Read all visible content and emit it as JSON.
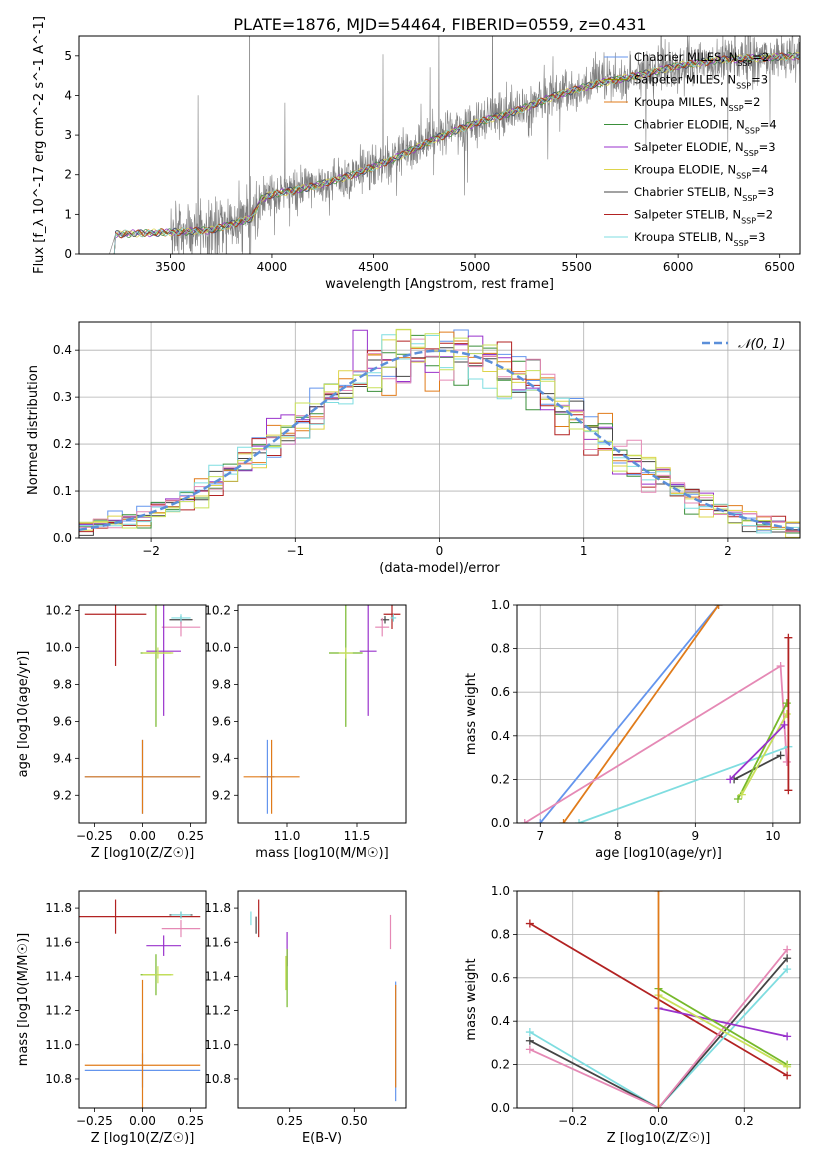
{
  "page_title": "PLATE=1876, MJD=54464, FIBERID=0559, z=0.431",
  "colors": {
    "Chabrier MILES": "#6495ed",
    "Salpeter MILES": "#8b8b00",
    "Kroupa MILES": "#e07b1a",
    "Chabrier ELODIE": "#3a8f3a",
    "Salpeter ELODIE": "#9932cc",
    "Kroupa ELODIE": "#ddd44a",
    "Chabrier STELIB": "#444444",
    "Salpeter STELIB": "#b22222",
    "Kroupa STELIB": "#7fdde0",
    "green2": "#76b82a",
    "pink": "#e589b5",
    "lime": "#c8e05a",
    "normal": "#5b8fd9"
  },
  "chart_data": [
    {
      "id": "spectrum",
      "type": "line",
      "title": "PLATE=1876, MJD=54464, FIBERID=0559, z=0.431",
      "xlabel": "wavelength [Angstrom, rest frame]",
      "ylabel": "Flux [f_λ 10^-17 erg cm^-2 s^-1 A^-1]",
      "xlim": [
        3050,
        6600
      ],
      "ylim": [
        0,
        5.5
      ],
      "xticks": [
        3500,
        4000,
        4500,
        5000,
        5500,
        6000,
        6500
      ],
      "yticks": [
        0,
        1,
        2,
        3,
        4,
        5
      ],
      "continuum_points": [
        [
          3200,
          0.0
        ],
        [
          3230,
          0.5
        ],
        [
          3500,
          0.55
        ],
        [
          3700,
          0.6
        ],
        [
          3900,
          0.9
        ],
        [
          3950,
          1.4
        ],
        [
          4000,
          1.5
        ],
        [
          4200,
          1.7
        ],
        [
          4400,
          2.0
        ],
        [
          4600,
          2.4
        ],
        [
          4800,
          2.9
        ],
        [
          5000,
          3.3
        ],
        [
          5200,
          3.6
        ],
        [
          5400,
          4.0
        ],
        [
          5600,
          4.3
        ],
        [
          5800,
          4.5
        ],
        [
          6000,
          4.75
        ],
        [
          6200,
          4.9
        ],
        [
          6400,
          4.95
        ],
        [
          6600,
          5.0
        ]
      ],
      "legend": [
        {
          "name": "Chabrier MILES",
          "nssp": "2"
        },
        {
          "name": "Salpeter MILES",
          "nssp": "3"
        },
        {
          "name": "Kroupa MILES",
          "nssp": "2"
        },
        {
          "name": "Chabrier ELODIE",
          "nssp": "4"
        },
        {
          "name": "Salpeter ELODIE",
          "nssp": "3"
        },
        {
          "name": "Kroupa ELODIE",
          "nssp": "4"
        },
        {
          "name": "Chabrier STELIB",
          "nssp": "3"
        },
        {
          "name": "Salpeter STELIB",
          "nssp": "2"
        },
        {
          "name": "Kroupa STELIB",
          "nssp": "3"
        }
      ],
      "legend_placement": "upper-right"
    },
    {
      "id": "residuals",
      "type": "line",
      "xlabel": "(data-model)/error",
      "ylabel": "Normed distribution",
      "xlim": [
        -2.5,
        2.5
      ],
      "ylim": [
        0,
        0.46
      ],
      "xticks": [
        -2,
        -1,
        0,
        1,
        2
      ],
      "yticks": [
        0.0,
        0.1,
        0.2,
        0.3,
        0.4
      ],
      "grid": true,
      "normal_label": "𝒩(0, 1)",
      "legend_placement": "upper-right"
    },
    {
      "id": "age_vs_Z",
      "type": "scatter",
      "xlabel": "Z [log10(Z/Z☉)]",
      "ylabel": "age  [log10(age/yr)]",
      "xlim": [
        -0.33,
        0.33
      ],
      "ylim": [
        9.05,
        10.23
      ],
      "xticks": [
        -0.25,
        0.0,
        0.25
      ],
      "yticks": [
        9.2,
        9.4,
        9.6,
        9.8,
        10.0,
        10.2
      ],
      "points": [
        {
          "c": "#6495ed",
          "x": 0.0,
          "y": 9.3,
          "xerr": 0.3,
          "yerr": 0.2
        },
        {
          "c": "#e07b1a",
          "x": 0.0,
          "y": 9.3,
          "xerr": 0.3,
          "yerr": 0.2
        },
        {
          "c": "#b22222",
          "x": -0.14,
          "y": 10.18,
          "xerr": 0.16,
          "yerr": 0.28
        },
        {
          "c": "#444444",
          "x": 0.2,
          "y": 10.15,
          "xerr": 0.06,
          "yerr": 0.02
        },
        {
          "c": "#e589b5",
          "x": 0.2,
          "y": 10.11,
          "xerr": 0.1,
          "yerr": 0.05
        },
        {
          "c": "#9932cc",
          "x": 0.11,
          "y": 9.98,
          "xerr": 0.09,
          "yerr": 0.35
        },
        {
          "c": "#76b82a",
          "x": 0.07,
          "y": 9.97,
          "xerr": 0.08,
          "yerr": 0.4
        },
        {
          "c": "#c8e05a",
          "x": 0.08,
          "y": 9.97,
          "xerr": 0.08,
          "yerr": 0.03
        },
        {
          "c": "#7fdde0",
          "x": 0.2,
          "y": 10.16,
          "xerr": 0.05,
          "yerr": 0.02
        }
      ]
    },
    {
      "id": "age_vs_mass",
      "type": "scatter",
      "xlabel": "mass [log10(M/M☉)]",
      "ylabel": "",
      "xlim": [
        10.65,
        11.85
      ],
      "ylim": [
        9.05,
        10.23
      ],
      "xticks": [
        11.0,
        11.5
      ],
      "yticks": [
        9.2,
        9.4,
        9.6,
        9.8,
        10.0,
        10.2
      ],
      "points": [
        {
          "c": "#6495ed",
          "x": 10.86,
          "y": 9.3,
          "xerr": 0.05,
          "yerr": 0.2
        },
        {
          "c": "#e07b1a",
          "x": 10.89,
          "y": 9.3,
          "xerr": 0.2,
          "yerr": 0.2
        },
        {
          "c": "#b22222",
          "x": 11.75,
          "y": 10.18,
          "xerr": 0.06,
          "yerr": 0.08
        },
        {
          "c": "#444444",
          "x": 11.7,
          "y": 10.15,
          "xerr": 0.03,
          "yerr": 0.02
        },
        {
          "c": "#e589b5",
          "x": 11.68,
          "y": 10.11,
          "xerr": 0.05,
          "yerr": 0.05
        },
        {
          "c": "#9932cc",
          "x": 11.58,
          "y": 9.98,
          "xerr": 0.06,
          "yerr": 0.35
        },
        {
          "c": "#76b82a",
          "x": 11.42,
          "y": 9.97,
          "xerr": 0.12,
          "yerr": 0.4
        },
        {
          "c": "#c8e05a",
          "x": 11.42,
          "y": 9.97,
          "xerr": 0.05,
          "yerr": 0.03
        },
        {
          "c": "#7fdde0",
          "x": 11.76,
          "y": 10.16,
          "xerr": 0.02,
          "yerr": 0.02
        }
      ]
    },
    {
      "id": "weight_vs_age",
      "type": "line",
      "xlabel": "age  [log10(age/yr)]",
      "ylabel": "mass weight",
      "xlim": [
        6.7,
        10.35
      ],
      "ylim": [
        0,
        1.0
      ],
      "xticks": [
        7,
        8,
        9,
        10
      ],
      "yticks": [
        0.0,
        0.2,
        0.4,
        0.6,
        0.8,
        1.0
      ],
      "grid": true,
      "series": [
        {
          "c": "#6495ed",
          "x": [
            7.0,
            9.3
          ],
          "y": [
            0.0,
            1.0
          ]
        },
        {
          "c": "#e07b1a",
          "x": [
            7.3,
            9.3
          ],
          "y": [
            0.0,
            1.0
          ]
        },
        {
          "c": "#e589b5",
          "x": [
            6.8,
            10.1,
            10.18
          ],
          "y": [
            0.0,
            0.72,
            0.28
          ]
        },
        {
          "c": "#7fdde0",
          "x": [
            7.5,
            10.2
          ],
          "y": [
            0.0,
            0.35
          ]
        },
        {
          "c": "#444444",
          "x": [
            9.5,
            10.1
          ],
          "y": [
            0.2,
            0.31
          ]
        },
        {
          "c": "#76b82a",
          "x": [
            9.55,
            10.18
          ],
          "y": [
            0.11,
            0.55
          ]
        },
        {
          "c": "#c8e05a",
          "x": [
            9.6,
            10.18
          ],
          "y": [
            0.13,
            0.5
          ]
        },
        {
          "c": "#9932cc",
          "x": [
            9.45,
            10.15
          ],
          "y": [
            0.2,
            0.45
          ]
        },
        {
          "c": "#b22222",
          "x": [
            10.2,
            10.2
          ],
          "y": [
            0.15,
            0.85
          ]
        }
      ]
    },
    {
      "id": "mass_vs_Z",
      "type": "scatter",
      "xlabel": "Z [log10(Z/Z☉)]",
      "ylabel": "mass [log10(M/M☉)]",
      "xlim": [
        -0.33,
        0.33
      ],
      "ylim": [
        10.63,
        11.9
      ],
      "xticks": [
        -0.25,
        0.0,
        0.25
      ],
      "yticks": [
        10.8,
        11.0,
        11.2,
        11.4,
        11.6,
        11.8
      ],
      "points": [
        {
          "c": "#6495ed",
          "x": 0.0,
          "y": 10.85,
          "xerr": 0.3,
          "yerr": 0.1
        },
        {
          "c": "#e07b1a",
          "x": 0.0,
          "y": 10.88,
          "xerr": 0.3,
          "yerr": 0.5
        },
        {
          "c": "#b22222",
          "x": -0.14,
          "y": 11.75,
          "xerr": 0.44,
          "yerr": 0.1
        },
        {
          "c": "#444444",
          "x": 0.2,
          "y": 11.76,
          "xerr": 0.06,
          "yerr": 0.02
        },
        {
          "c": "#e589b5",
          "x": 0.2,
          "y": 11.68,
          "xerr": 0.1,
          "yerr": 0.05
        },
        {
          "c": "#9932cc",
          "x": 0.11,
          "y": 11.58,
          "xerr": 0.09,
          "yerr": 0.06
        },
        {
          "c": "#76b82a",
          "x": 0.07,
          "y": 11.41,
          "xerr": 0.08,
          "yerr": 0.12
        },
        {
          "c": "#c8e05a",
          "x": 0.08,
          "y": 11.41,
          "xerr": 0.08,
          "yerr": 0.05
        },
        {
          "c": "#7fdde0",
          "x": 0.2,
          "y": 11.76,
          "xerr": 0.05,
          "yerr": 0.02
        }
      ]
    },
    {
      "id": "mass_vs_EBV",
      "type": "scatter",
      "xlabel": "E(B-V)",
      "ylabel": "",
      "xlim": [
        0.05,
        0.7
      ],
      "ylim": [
        10.63,
        11.9
      ],
      "xticks": [
        0.25,
        0.5
      ],
      "yticks": [
        10.8,
        11.0,
        11.2,
        11.4,
        11.6,
        11.8
      ],
      "points": [
        {
          "c": "#6495ed",
          "x": 0.66,
          "y": 11.02,
          "xerr": 0.0,
          "yerr": 0.35
        },
        {
          "c": "#e07b1a",
          "x": 0.66,
          "y": 11.05,
          "xerr": 0.0,
          "yerr": 0.3
        },
        {
          "c": "#e589b5",
          "x": 0.64,
          "y": 11.66,
          "xerr": 0.0,
          "yerr": 0.1
        },
        {
          "c": "#b22222",
          "x": 0.13,
          "y": 11.74,
          "xerr": 0.0,
          "yerr": 0.11
        },
        {
          "c": "#444444",
          "x": 0.12,
          "y": 11.7,
          "xerr": 0.0,
          "yerr": 0.05
        },
        {
          "c": "#7fdde0",
          "x": 0.1,
          "y": 11.74,
          "xerr": 0.0,
          "yerr": 0.04
        },
        {
          "c": "#9932cc",
          "x": 0.24,
          "y": 11.56,
          "xerr": 0.0,
          "yerr": 0.1
        },
        {
          "c": "#76b82a",
          "x": 0.24,
          "y": 11.39,
          "xerr": 0.0,
          "yerr": 0.17
        },
        {
          "c": "#c8e05a",
          "x": 0.235,
          "y": 11.42,
          "xerr": 0.0,
          "yerr": 0.1
        }
      ]
    },
    {
      "id": "weight_vs_Z",
      "type": "line",
      "xlabel": "Z [log10(Z/Z☉)]",
      "ylabel": "mass weight",
      "xlim": [
        -0.33,
        0.33
      ],
      "ylim": [
        0,
        1.0
      ],
      "xticks": [
        -0.2,
        0.0,
        0.2
      ],
      "yticks": [
        0.0,
        0.2,
        0.4,
        0.6,
        0.8,
        1.0
      ],
      "grid": true,
      "series": [
        {
          "c": "#b22222",
          "x": [
            -0.3,
            0.3
          ],
          "y": [
            0.85,
            0.15
          ]
        },
        {
          "c": "#7fdde0",
          "x": [
            -0.3,
            0.0,
            0.3
          ],
          "y": [
            0.35,
            0.0,
            0.64
          ]
        },
        {
          "c": "#444444",
          "x": [
            -0.3,
            0.0,
            0.3
          ],
          "y": [
            0.31,
            0.0,
            0.69
          ]
        },
        {
          "c": "#e589b5",
          "x": [
            -0.3,
            0.0,
            0.3
          ],
          "y": [
            0.27,
            0.0,
            0.73
          ]
        },
        {
          "c": "#9932cc",
          "x": [
            0.0,
            0.3
          ],
          "y": [
            0.46,
            0.33
          ]
        },
        {
          "c": "#76b82a",
          "x": [
            0.0,
            0.3
          ],
          "y": [
            0.55,
            0.2
          ]
        },
        {
          "c": "#c8e05a",
          "x": [
            0.0,
            0.3
          ],
          "y": [
            0.52,
            0.19
          ]
        },
        {
          "c": "#e07b1a",
          "x": [
            0.0,
            0.0
          ],
          "y": [
            0.0,
            1.0
          ]
        }
      ]
    }
  ]
}
